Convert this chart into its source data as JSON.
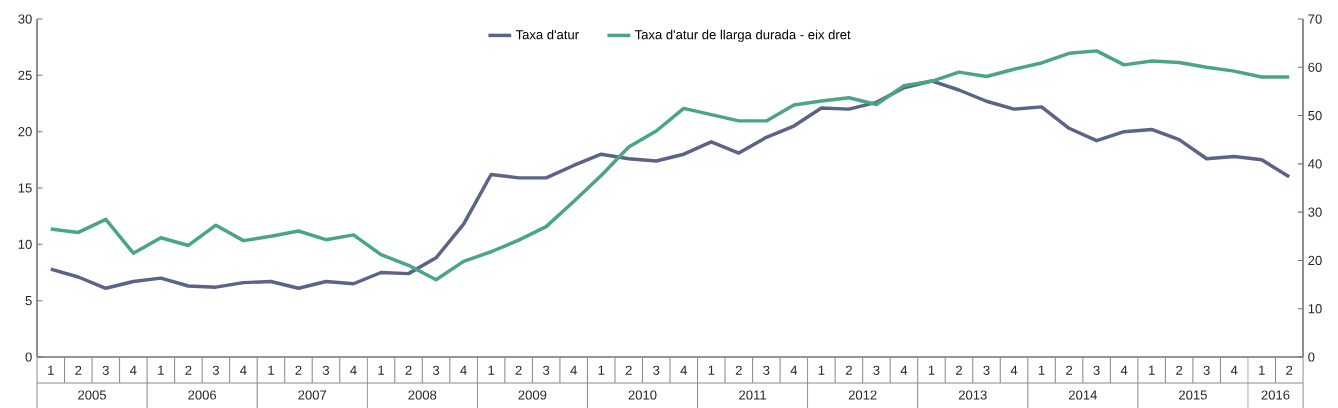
{
  "chart_data": {
    "type": "line",
    "categories": [
      "1",
      "2",
      "3",
      "4",
      "1",
      "2",
      "3",
      "4",
      "1",
      "2",
      "3",
      "4",
      "1",
      "2",
      "3",
      "4",
      "1",
      "2",
      "3",
      "4",
      "1",
      "2",
      "3",
      "4",
      "1",
      "2",
      "3",
      "4",
      "1",
      "2",
      "3",
      "4",
      "1",
      "2",
      "3",
      "4",
      "1",
      "2",
      "3",
      "4",
      "1",
      "2",
      "3",
      "4",
      "1",
      "2"
    ],
    "series": [
      {
        "name": "Taxa d'atur",
        "color": "#5b6386",
        "values": [
          7.8,
          7.1,
          6.1,
          6.7,
          7.0,
          6.3,
          6.2,
          6.6,
          6.7,
          6.1,
          6.7,
          6.5,
          7.5,
          7.4,
          8.8,
          11.8,
          16.2,
          15.9,
          15.9,
          17.0,
          18.0,
          17.6,
          17.4,
          18.0,
          19.1,
          18.1,
          19.5,
          20.5,
          22.1,
          22.0,
          22.6,
          23.9,
          24.5,
          23.7,
          22.7,
          22.0,
          22.2,
          20.3,
          19.2,
          20.0,
          20.2,
          19.3,
          17.6,
          17.8,
          17.5,
          16.0
        ]
      },
      {
        "name": "Taxa d'atur de llarga durada - eix dret",
        "color": "#4aa584",
        "axis": "y2",
        "values": [
          26.5,
          25.8,
          28.5,
          21.5,
          24.7,
          23.1,
          27.3,
          24.1,
          25.0,
          26.1,
          24.3,
          25.3,
          21.2,
          19.0,
          16.0,
          19.8,
          21.8,
          24.2,
          27.0,
          32.2,
          37.6,
          43.5,
          46.8,
          51.5,
          50.2,
          48.9,
          48.9,
          52.2,
          53.0,
          53.7,
          52.3,
          56.2,
          57.1,
          59.0,
          58.1,
          59.6,
          60.9,
          62.9,
          63.4,
          60.5,
          61.3,
          61.0,
          60.0,
          59.2,
          58.0,
          58.0
        ]
      }
    ],
    "annotations": [
      "2005",
      "2006",
      "2007",
      "2008",
      "2009",
      "2010",
      "2011",
      "2012",
      "2013",
      "2014",
      "2015",
      "2016"
    ],
    "ylim": [
      0,
      30
    ],
    "yticks": [
      0,
      5,
      10,
      15,
      20,
      25,
      30
    ],
    "y2lim": [
      0,
      70
    ],
    "y2ticks": [
      0,
      10,
      20,
      30,
      40,
      50,
      60,
      70
    ],
    "legend": "top"
  }
}
